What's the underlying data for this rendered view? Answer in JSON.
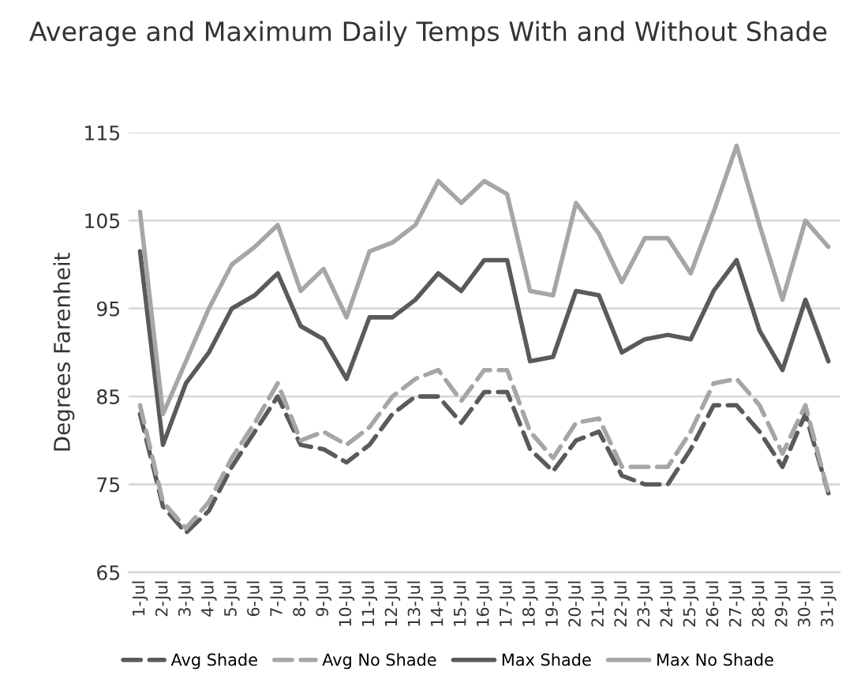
{
  "chart_data": {
    "type": "line",
    "title": "Average and Maximum Daily Temps With and Without Shade",
    "ylabel": "Degrees Farenheit",
    "categories": [
      "1-Jul",
      "2-Jul",
      "3-Jul",
      "4-Jul",
      "5-Jul",
      "6-Jul",
      "7-Jul",
      "8-Jul",
      "9-Jul",
      "10-Jul",
      "11-Jul",
      "12-Jul",
      "13-Jul",
      "14-Jul",
      "15-Jul",
      "16-Jul",
      "17-Jul",
      "18-Jul",
      "19-Jul",
      "20-Jul",
      "21-Jul",
      "22-Jul",
      "23-Jul",
      "24-Jul",
      "25-Jul",
      "26-Jul",
      "27-Jul",
      "28-Jul",
      "29-Jul",
      "30-Jul",
      "31-Jul"
    ],
    "series": [
      {
        "name": "Avg Shade",
        "color": "#5a5a5a",
        "line_style": "dashed",
        "values": [
          83,
          72.5,
          69.5,
          72,
          77,
          81,
          85,
          79.5,
          79,
          77.5,
          79.5,
          83,
          85,
          85,
          82,
          85.5,
          85.5,
          79,
          76.5,
          80,
          81,
          76,
          75,
          75,
          79,
          84,
          84,
          81,
          77,
          83,
          74
        ]
      },
      {
        "name": "Avg No Shade",
        "color": "#a6a6a6",
        "line_style": "dashed",
        "values": [
          84,
          73,
          70,
          73,
          78,
          82,
          86.5,
          80,
          81,
          79.5,
          81.5,
          85,
          87,
          88,
          84.5,
          88,
          88,
          81,
          78,
          82,
          82.5,
          77,
          77,
          77,
          81,
          86.5,
          87,
          84,
          78.5,
          84,
          74
        ]
      },
      {
        "name": "Max Shade",
        "color": "#5a5a5a",
        "line_style": "solid",
        "values": [
          101.5,
          79.5,
          86.5,
          90,
          95,
          96.5,
          99,
          93,
          91.5,
          87,
          94,
          94,
          96,
          99,
          97,
          100.5,
          100.5,
          89,
          89.5,
          97,
          96.5,
          90,
          91.5,
          92,
          91.5,
          97,
          100.5,
          92.5,
          88,
          96,
          89
        ]
      },
      {
        "name": "Max No Shade",
        "color": "#a6a6a6",
        "line_style": "solid",
        "values": [
          106,
          83,
          89,
          95,
          100,
          102,
          104.5,
          97,
          99.5,
          94,
          101.5,
          102.5,
          104.5,
          109.5,
          107,
          109.5,
          108,
          97,
          96.5,
          107,
          103.5,
          98,
          103,
          103,
          99,
          106,
          113.5,
          104.5,
          96,
          105,
          102
        ]
      }
    ],
    "ylim": [
      65,
      115
    ],
    "yticks": [
      65,
      75,
      85,
      95,
      105,
      115
    ],
    "grid": "y",
    "legend": "bottom",
    "marker": "none"
  }
}
